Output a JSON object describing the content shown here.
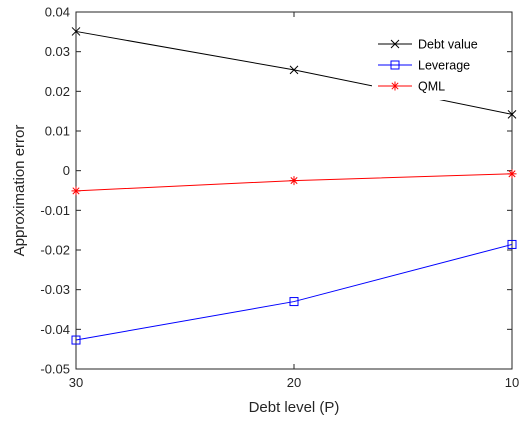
{
  "chart_data": {
    "type": "line",
    "title": "",
    "xlabel": "Debt level (P)",
    "ylabel": "Approximation error",
    "x": [
      30,
      20,
      10
    ],
    "x_reversed": true,
    "xlim": [
      30,
      10
    ],
    "ylim": [
      -0.05,
      0.04
    ],
    "x_ticks": [
      "30",
      "20",
      "10"
    ],
    "x_tick_values": [
      30,
      20,
      10
    ],
    "y_ticks": [
      "-0.05",
      "-0.04",
      "-0.03",
      "-0.02",
      "-0.01",
      "0",
      "0.01",
      "0.02",
      "0.03",
      "0.04"
    ],
    "y_tick_values": [
      -0.05,
      -0.04,
      -0.03,
      -0.02,
      -0.01,
      0,
      0.01,
      0.02,
      0.03,
      0.04
    ],
    "grid": false,
    "legend_position": "top-right",
    "series": [
      {
        "name": "Debt value",
        "values": [
          0.0351,
          0.0254,
          0.0142
        ],
        "color": "#000000",
        "marker": "x"
      },
      {
        "name": "Leverage",
        "values": [
          -0.0427,
          -0.033,
          -0.0186
        ],
        "color": "#0000ff",
        "marker": "square"
      },
      {
        "name": "QML",
        "values": [
          -0.0051,
          -0.0025,
          -0.0008
        ],
        "color": "#ff0000",
        "marker": "asterisk"
      }
    ]
  }
}
